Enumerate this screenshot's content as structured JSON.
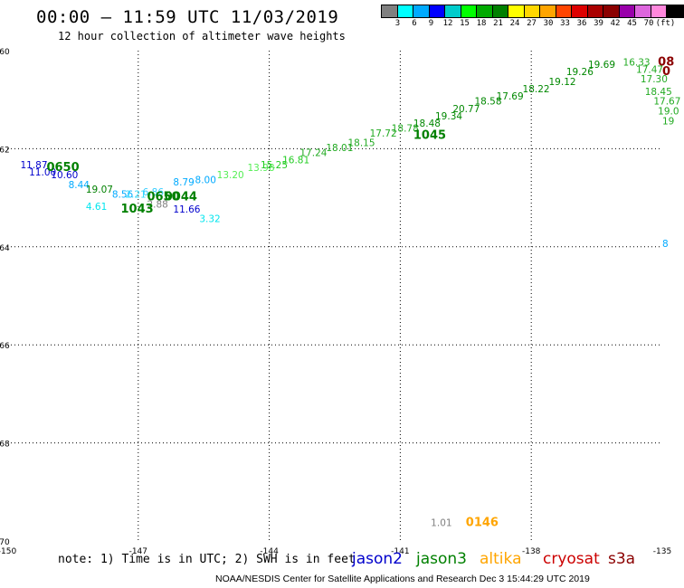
{
  "header": {
    "title": "00:00 — 11:59 UTC 11/03/2019",
    "subtitle": "12 hour collection of altimeter wave heights"
  },
  "colorbar": {
    "colors": [
      "#808080",
      "#00ffff",
      "#00aaff",
      "#0000ff",
      "#00cccc",
      "#00ff00",
      "#00aa00",
      "#008000",
      "#ffff00",
      "#ffd700",
      "#ffa500",
      "#ff4500",
      "#dd0000",
      "#aa0000",
      "#8b0000",
      "#9900aa",
      "#dd66dd",
      "#ff88dd",
      "#000000"
    ],
    "labels": [
      "3",
      "6",
      "9",
      "12",
      "15",
      "18",
      "21",
      "24",
      "27",
      "30",
      "33",
      "36",
      "39",
      "42",
      "45",
      "70",
      "(ft)"
    ]
  },
  "axes": {
    "lat_ticks": [
      "-60",
      "-62",
      "-64",
      "-66",
      "-68",
      "-70"
    ],
    "lon_ticks": [
      "-150",
      "-147",
      "-144",
      "-141",
      "-138",
      "-135"
    ]
  },
  "chart_data": {
    "type": "scatter",
    "xlim": [
      -150,
      -135
    ],
    "ylim": [
      -70,
      -60
    ],
    "grid": true,
    "wave_heights": [
      {
        "lon": -149.7,
        "lat": -62.4,
        "v": "11.87",
        "color": "#0000cc"
      },
      {
        "lon": -149.5,
        "lat": -62.55,
        "v": "11.00",
        "color": "#0000cc"
      },
      {
        "lon": -149.0,
        "lat": -62.6,
        "v": "10.60",
        "color": "#0000cc"
      },
      {
        "lon": -148.6,
        "lat": -62.8,
        "v": "8.44",
        "color": "#00aaff"
      },
      {
        "lon": -148.2,
        "lat": -62.9,
        "v": "19.07",
        "color": "#008000"
      },
      {
        "lon": -148.2,
        "lat": -63.25,
        "v": "4.61",
        "color": "#00e5ee"
      },
      {
        "lon": -147.6,
        "lat": -63.0,
        "v": "8.56",
        "color": "#00aaff"
      },
      {
        "lon": -147.3,
        "lat": -63.0,
        "v": "2.21",
        "color": "#33ddff"
      },
      {
        "lon": -146.9,
        "lat": -62.95,
        "v": "6.86",
        "color": "#33ccff"
      },
      {
        "lon": -146.8,
        "lat": -63.2,
        "v": "2.88",
        "color": "#808080"
      },
      {
        "lon": -146.2,
        "lat": -63.3,
        "v": "11.66",
        "color": "#0000cc"
      },
      {
        "lon": -146.2,
        "lat": -62.75,
        "v": "8.79",
        "color": "#00aaff"
      },
      {
        "lon": -145.7,
        "lat": -62.7,
        "v": "8.00",
        "color": "#00aaff"
      },
      {
        "lon": -145.6,
        "lat": -63.5,
        "v": "3.32",
        "color": "#00e5ee"
      },
      {
        "lon": -145.2,
        "lat": -62.6,
        "v": "13.20",
        "color": "#55ee55"
      },
      {
        "lon": -144.5,
        "lat": -62.45,
        "v": "13.98",
        "color": "#55ee55"
      },
      {
        "lon": -144.2,
        "lat": -62.4,
        "v": "15.25",
        "color": "#22cc22"
      },
      {
        "lon": -143.7,
        "lat": -62.3,
        "v": "16.81",
        "color": "#22cc22"
      },
      {
        "lon": -143.3,
        "lat": -62.15,
        "v": "17.24",
        "color": "#22aa22"
      },
      {
        "lon": -142.7,
        "lat": -62.05,
        "v": "18.01",
        "color": "#22aa22"
      },
      {
        "lon": -142.2,
        "lat": -61.95,
        "v": "18.15",
        "color": "#22aa22"
      },
      {
        "lon": -141.7,
        "lat": -61.75,
        "v": "17.72",
        "color": "#22aa22"
      },
      {
        "lon": -141.2,
        "lat": -61.65,
        "v": "18.78",
        "color": "#22aa22"
      },
      {
        "lon": -140.7,
        "lat": -61.55,
        "v": "18.48",
        "color": "#008800"
      },
      {
        "lon": -140.2,
        "lat": -61.4,
        "v": "19.34",
        "color": "#008800"
      },
      {
        "lon": -139.8,
        "lat": -61.25,
        "v": "20.77",
        "color": "#008800"
      },
      {
        "lon": -139.3,
        "lat": -61.1,
        "v": "18.58",
        "color": "#008800"
      },
      {
        "lon": -138.8,
        "lat": -61.0,
        "v": "17.69",
        "color": "#008800"
      },
      {
        "lon": -138.2,
        "lat": -60.85,
        "v": "18.22",
        "color": "#008800"
      },
      {
        "lon": -137.6,
        "lat": -60.7,
        "v": "19.12",
        "color": "#008800"
      },
      {
        "lon": -137.2,
        "lat": -60.5,
        "v": "19.26",
        "color": "#008800"
      },
      {
        "lon": -136.7,
        "lat": -60.35,
        "v": "19.69",
        "color": "#008800"
      },
      {
        "lon": -135.9,
        "lat": -60.3,
        "v": "16.33",
        "color": "#22aa22"
      },
      {
        "lon": -135.6,
        "lat": -60.45,
        "v": "17.47",
        "color": "#22aa22"
      },
      {
        "lon": -135.5,
        "lat": -60.65,
        "v": "17.30",
        "color": "#22aa22"
      },
      {
        "lon": -135.4,
        "lat": -60.9,
        "v": "18.45",
        "color": "#22aa22"
      },
      {
        "lon": -135.2,
        "lat": -61.1,
        "v": "17.67",
        "color": "#22aa22"
      },
      {
        "lon": -135.1,
        "lat": -61.3,
        "v": "19.0",
        "color": "#22aa22"
      },
      {
        "lon": -135.0,
        "lat": -61.5,
        "v": "19",
        "color": "#22aa22"
      },
      {
        "lon": -135.0,
        "lat": -64.0,
        "v": "8",
        "color": "#00aaff"
      },
      {
        "lon": -140.3,
        "lat": -69.7,
        "v": "1.01",
        "color": "#808080"
      }
    ],
    "pass_times": [
      {
        "lon": -149.1,
        "lat": -62.45,
        "v": "0650",
        "color": "#008000"
      },
      {
        "lon": -146.8,
        "lat": -63.05,
        "v": "0650",
        "color": "#008000"
      },
      {
        "lon": -146.4,
        "lat": -63.05,
        "v": "0044",
        "color": "#008000"
      },
      {
        "lon": -147.4,
        "lat": -63.3,
        "v": "1043",
        "color": "#008000"
      },
      {
        "lon": -140.7,
        "lat": -61.8,
        "v": "1045",
        "color": "#008000"
      },
      {
        "lon": -135.1,
        "lat": -60.3,
        "v": "08",
        "color": "#8b0000"
      },
      {
        "lon": -135.0,
        "lat": -60.5,
        "v": "0",
        "color": "#8b0000"
      },
      {
        "lon": -139.5,
        "lat": -69.7,
        "v": "0146",
        "color": "#ffa500"
      }
    ]
  },
  "footer": {
    "note": "note: 1) Time is in UTC; 2) SWH is in feet",
    "credit": "NOAA/NESDIS Center for Satellite Applications and Research    Dec  3 15:44:29 UTC 2019",
    "missions": [
      {
        "name": "jason2",
        "color": "#0000cc"
      },
      {
        "name": "jason3",
        "color": "#008000"
      },
      {
        "name": "altika",
        "color": "#ffa500"
      },
      {
        "name": "cryosat",
        "color": "#cc0000"
      },
      {
        "name": "s3a",
        "color": "#8b0000"
      }
    ]
  }
}
